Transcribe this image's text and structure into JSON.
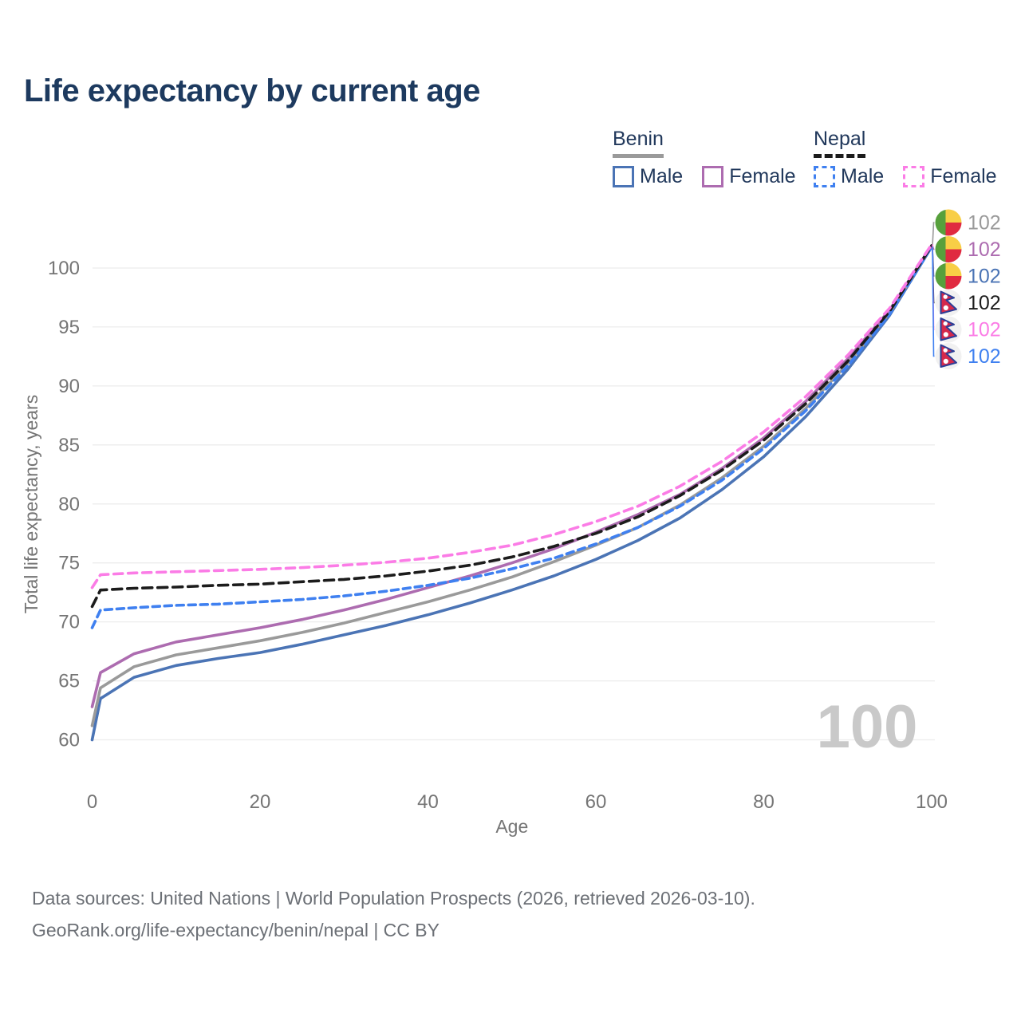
{
  "header": {
    "title": "Life expectancy by current age"
  },
  "legend": {
    "benin": {
      "label": "Benin",
      "male": "Male",
      "female": "Female"
    },
    "nepal": {
      "label": "Nepal",
      "male": "Male",
      "female": "Female"
    }
  },
  "colors": {
    "benin_male": "#4b74b5",
    "benin_female": "#ad6cb0",
    "benin_all": "#9a9a9a",
    "nepal_male": "#3f80f0",
    "nepal_female": "#fb7ce6",
    "nepal_all": "#1c1c1c",
    "title_text": "#1d3a5f",
    "axis_text": "#757575",
    "gridline": "#ececec",
    "watermark": "#c9c9c9"
  },
  "flags": {
    "benin": {
      "green": "#57a03c",
      "yellow": "#f8ce46",
      "red": "#e02a40"
    },
    "nepal": {
      "crimson": "#d5294c",
      "blue": "#2c3e97",
      "bg": "#f1f1f1"
    }
  },
  "chart_data": {
    "type": "line",
    "title": "Life expectancy by current age",
    "xlabel": "Age",
    "ylabel": "Total life expectancy, years",
    "xlim": [
      0,
      100
    ],
    "ylim": [
      60,
      102
    ],
    "xticks": [
      0,
      20,
      40,
      60,
      80,
      100
    ],
    "yticks": [
      60,
      65,
      70,
      75,
      80,
      85,
      90,
      95,
      100
    ],
    "grid": "horizontal",
    "legend_position": "top-right",
    "watermark": "100",
    "x": [
      0,
      1,
      5,
      10,
      15,
      20,
      25,
      30,
      35,
      40,
      45,
      50,
      55,
      60,
      65,
      70,
      75,
      80,
      85,
      90,
      95,
      100
    ],
    "series": [
      {
        "key": "benin_male",
        "name": "Benin Male",
        "country": "Benin",
        "sex": "Male",
        "style": "solid",
        "dash": "",
        "values": [
          60.0,
          63.5,
          65.3,
          66.3,
          66.9,
          67.4,
          68.1,
          68.9,
          69.7,
          70.6,
          71.6,
          72.7,
          73.9,
          75.3,
          76.9,
          78.8,
          81.2,
          84.0,
          87.4,
          91.4,
          96.0,
          101.8
        ]
      },
      {
        "key": "benin_all",
        "name": "Benin (all)",
        "country": "Benin",
        "sex": "All",
        "style": "solid",
        "dash": "",
        "values": [
          61.2,
          64.4,
          66.2,
          67.2,
          67.8,
          68.4,
          69.1,
          69.9,
          70.8,
          71.7,
          72.7,
          73.8,
          75.1,
          76.5,
          78.0,
          79.9,
          82.2,
          84.9,
          88.1,
          91.9,
          96.2,
          101.85
        ]
      },
      {
        "key": "benin_female",
        "name": "Benin Female",
        "country": "Benin",
        "sex": "Female",
        "style": "solid",
        "dash": "",
        "values": [
          62.8,
          65.7,
          67.3,
          68.3,
          68.9,
          69.5,
          70.2,
          71.0,
          71.9,
          72.9,
          73.9,
          75.0,
          76.2,
          77.6,
          79.1,
          80.8,
          83.0,
          85.6,
          88.7,
          92.3,
          96.45,
          101.9
        ]
      },
      {
        "key": "nepal_male",
        "name": "Nepal Male",
        "country": "Nepal",
        "sex": "Male",
        "style": "dashed",
        "dash": "9 6",
        "values": [
          69.5,
          71.0,
          71.2,
          71.4,
          71.5,
          71.7,
          71.9,
          72.2,
          72.6,
          73.1,
          73.7,
          74.5,
          75.4,
          76.6,
          78.0,
          79.8,
          82.0,
          84.7,
          87.9,
          91.7,
          96.1,
          101.8
        ]
      },
      {
        "key": "nepal_all",
        "name": "Nepal (all)",
        "country": "Nepal",
        "sex": "All",
        "style": "dashed",
        "dash": "12 7",
        "values": [
          71.3,
          72.7,
          72.85,
          72.95,
          73.1,
          73.2,
          73.4,
          73.6,
          73.9,
          74.3,
          74.8,
          75.5,
          76.4,
          77.5,
          78.9,
          80.7,
          82.85,
          85.4,
          88.5,
          92.1,
          96.35,
          101.9
        ]
      },
      {
        "key": "nepal_female",
        "name": "Nepal Female",
        "country": "Nepal",
        "sex": "Female",
        "style": "dashed",
        "dash": "11 7",
        "values": [
          72.9,
          74.0,
          74.15,
          74.25,
          74.35,
          74.45,
          74.6,
          74.8,
          75.05,
          75.4,
          75.9,
          76.5,
          77.4,
          78.5,
          79.8,
          81.5,
          83.6,
          86.1,
          89.1,
          92.6,
          96.6,
          102.0
        ]
      }
    ],
    "end_rows": [
      {
        "series": "benin_all",
        "flag": "benin",
        "label": "102"
      },
      {
        "series": "benin_female",
        "flag": "benin",
        "label": "102"
      },
      {
        "series": "benin_male",
        "flag": "benin",
        "label": "102"
      },
      {
        "series": "nepal_all",
        "flag": "nepal",
        "label": "102"
      },
      {
        "series": "nepal_female",
        "flag": "nepal",
        "label": "102"
      },
      {
        "series": "nepal_male",
        "flag": "nepal",
        "label": "102"
      }
    ]
  },
  "footer": {
    "line1": "Data sources: United Nations | World Population Prospects (2026, retrieved 2026-03-10).",
    "line2": "GeoRank.org/life-expectancy/benin/nepal | CC BY"
  }
}
